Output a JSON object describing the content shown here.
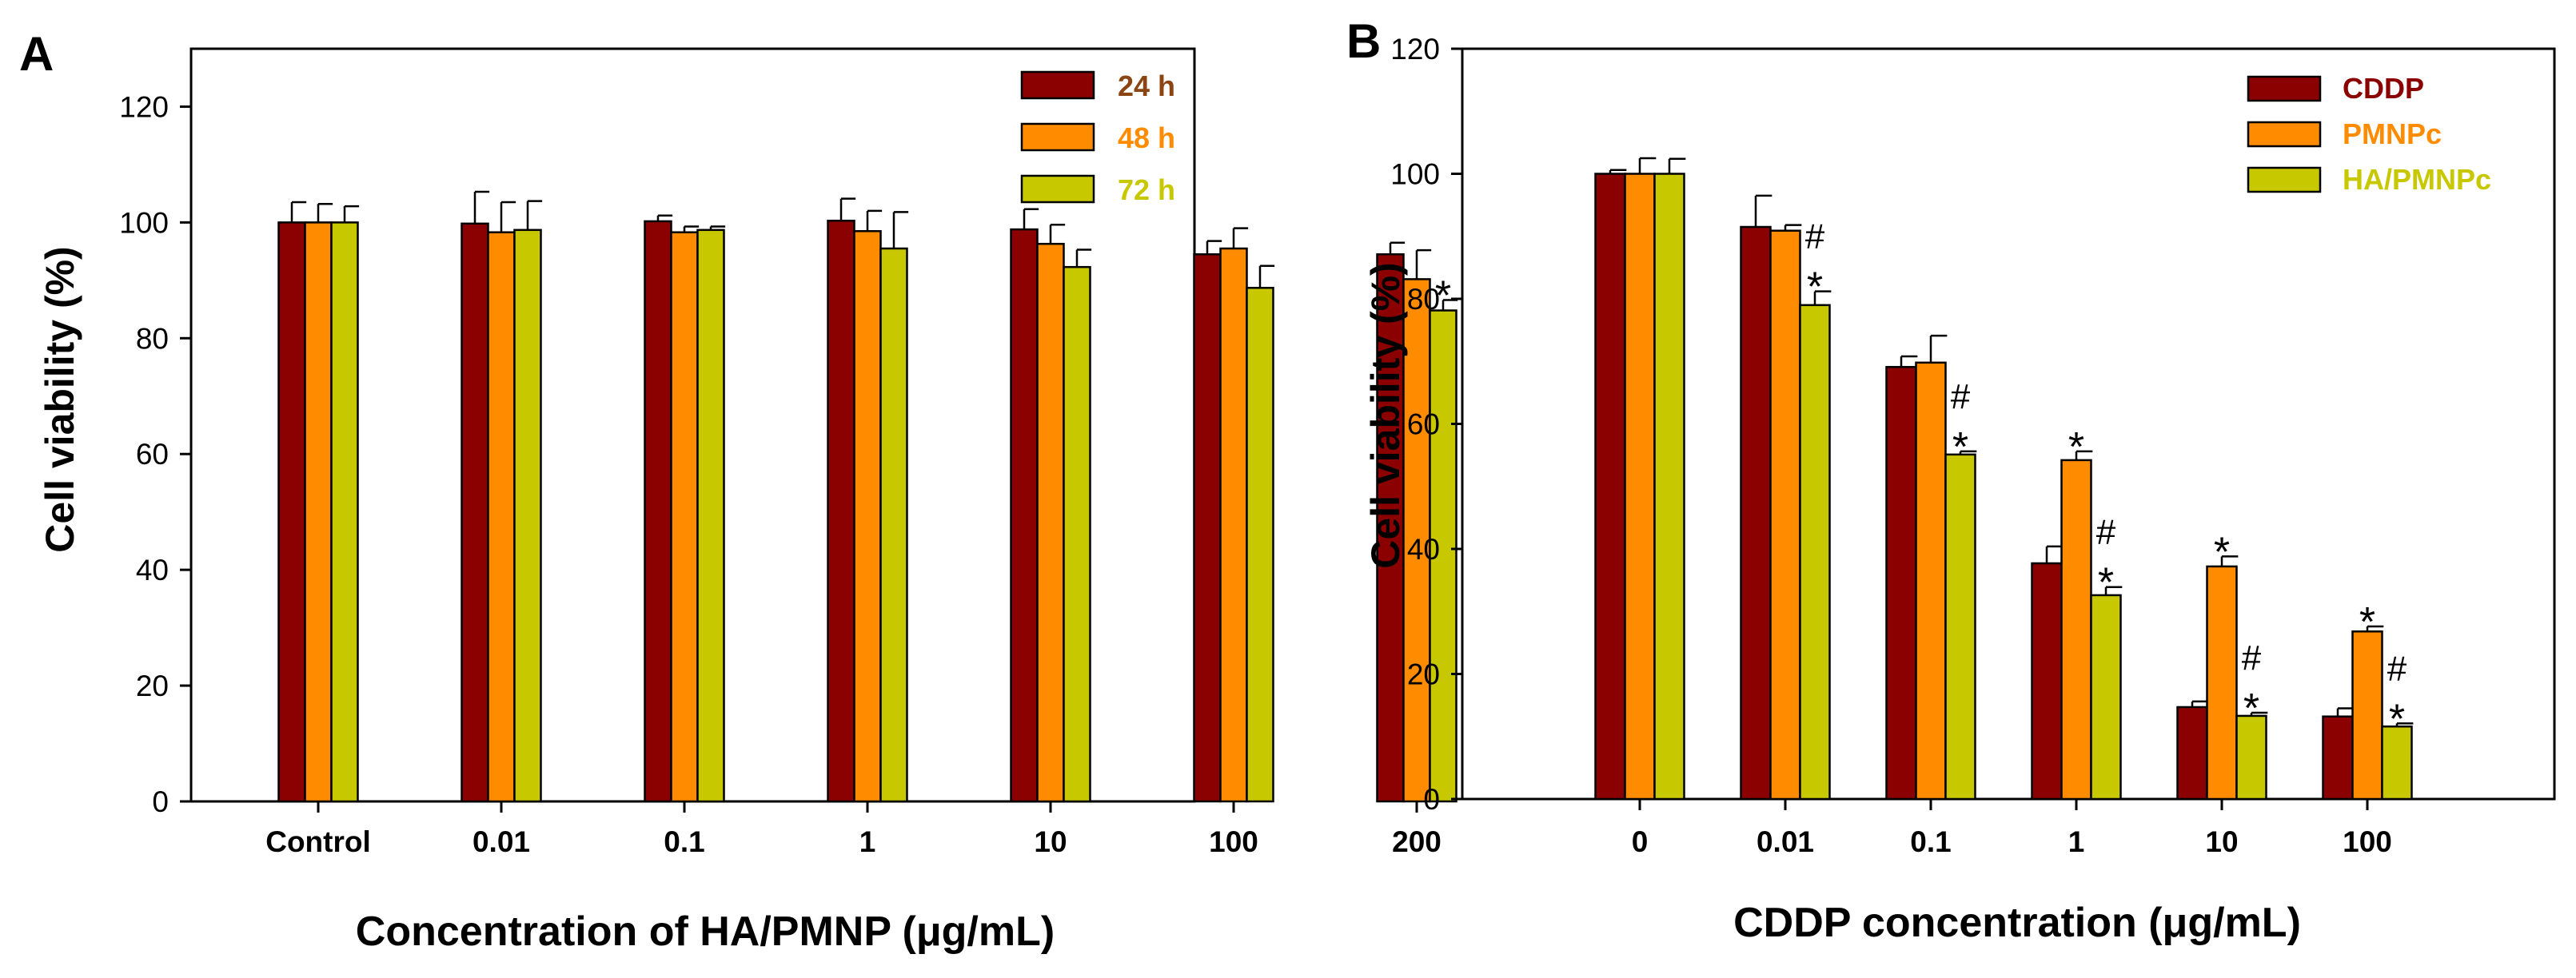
{
  "chart_data": [
    {
      "panel": "A",
      "type": "bar",
      "title": "",
      "xlabel": "Concentration of HA/PMNP (μg/mL)",
      "ylabel": "Cell viability (%)",
      "ylim": [
        0,
        130
      ],
      "yticks": [
        0,
        20,
        40,
        60,
        80,
        100,
        120
      ],
      "categories": [
        "Control",
        "0.01",
        "0.1",
        "1",
        "10",
        "100",
        "200"
      ],
      "legend_position": "top-right",
      "series": [
        {
          "name": "24 h",
          "color": "#8b0000",
          "label_color": "#8b4513",
          "values": [
            100,
            99.8,
            100.2,
            100.3,
            98.8,
            94.5,
            94.5
          ],
          "errors": [
            3.5,
            5.5,
            1.0,
            3.8,
            3.5,
            2.3,
            2.0
          ]
        },
        {
          "name": "48 h",
          "color": "#ff8c00",
          "label_color": "#ff8c00",
          "values": [
            100,
            98.3,
            98.3,
            98.5,
            96.3,
            95.5,
            90.2
          ],
          "errors": [
            3.2,
            5.2,
            1.0,
            3.5,
            3.3,
            3.5,
            5.0
          ]
        },
        {
          "name": "72 h",
          "color": "#c8c800",
          "label_color": "#c8c800",
          "values": [
            100,
            98.7,
            98.7,
            95.5,
            92.3,
            88.7,
            84.8
          ],
          "errors": [
            2.8,
            5.0,
            0.6,
            6.3,
            3.0,
            3.8,
            1.8
          ]
        }
      ],
      "annotations": [
        {
          "category": "200",
          "series": "72 h",
          "text": "*"
        }
      ]
    },
    {
      "panel": "B",
      "type": "bar",
      "title": "",
      "xlabel": "CDDP concentration (μg/mL)",
      "ylabel": "Cell viability (%)",
      "ylim": [
        0,
        120
      ],
      "yticks": [
        0,
        20,
        40,
        60,
        80,
        100,
        120
      ],
      "categories": [
        "0",
        "0.01",
        "0.1",
        "1",
        "10",
        "100"
      ],
      "legend_position": "top-right",
      "series": [
        {
          "name": "CDDP",
          "color": "#8b0000",
          "label_color": "#8b0000",
          "values": [
            100,
            91.5,
            69.1,
            37.7,
            14.7,
            13.2
          ],
          "errors": [
            0.6,
            5.0,
            1.7,
            2.7,
            0.9,
            1.3
          ]
        },
        {
          "name": "PMNPc",
          "color": "#ff8c00",
          "label_color": "#ff8c00",
          "values": [
            100,
            90.9,
            69.8,
            54.2,
            37.2,
            26.8
          ],
          "errors": [
            2.5,
            0.9,
            4.3,
            1.4,
            1.6,
            0.8
          ]
        },
        {
          "name": "HA/PMNPc",
          "color": "#c8c800",
          "label_color": "#c8c800",
          "values": [
            100,
            79.0,
            55.1,
            32.6,
            13.3,
            11.6
          ],
          "errors": [
            2.4,
            2.2,
            0.5,
            1.3,
            0.5,
            0.5
          ]
        }
      ],
      "annotations": [
        {
          "category": "0.01",
          "series": "HA/PMNPc",
          "text": "*"
        },
        {
          "category": "0.01",
          "series": "HA/PMNPc",
          "text": "#"
        },
        {
          "category": "0.1",
          "series": "HA/PMNPc",
          "text": "*"
        },
        {
          "category": "0.1",
          "series": "HA/PMNPc",
          "text": "#"
        },
        {
          "category": "1",
          "series": "PMNPc",
          "text": "*"
        },
        {
          "category": "1",
          "series": "HA/PMNPc",
          "text": "*"
        },
        {
          "category": "1",
          "series": "HA/PMNPc",
          "text": "#"
        },
        {
          "category": "10",
          "series": "PMNPc",
          "text": "*"
        },
        {
          "category": "10",
          "series": "HA/PMNPc",
          "text": "*"
        },
        {
          "category": "10",
          "series": "HA/PMNPc",
          "text": "#"
        },
        {
          "category": "100",
          "series": "PMNPc",
          "text": "*"
        },
        {
          "category": "100",
          "series": "HA/PMNPc",
          "text": "*"
        },
        {
          "category": "100",
          "series": "HA/PMNPc",
          "text": "#"
        }
      ]
    }
  ]
}
